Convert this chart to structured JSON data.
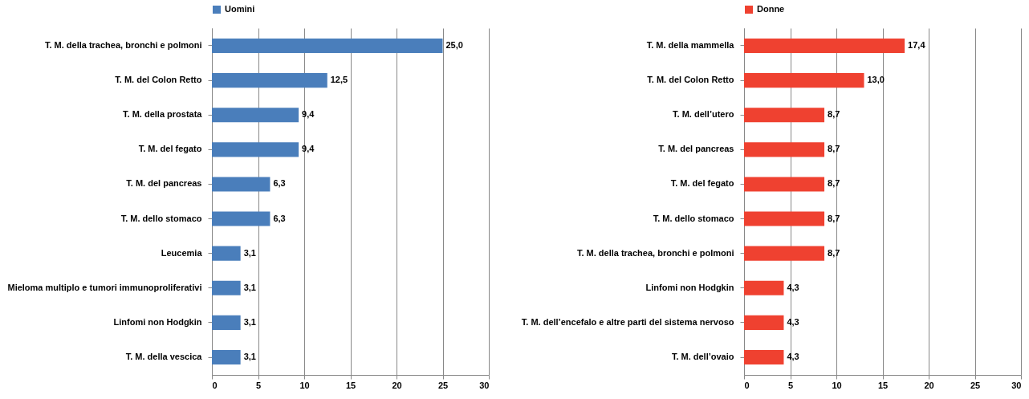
{
  "chart_data": [
    {
      "type": "bar",
      "orientation": "horizontal",
      "categories": [
        "T. M. della trachea, bronchi e polmoni",
        "T. M. del Colon Retto",
        "T. M. della prostata",
        "T. M. del fegato",
        "T. M. del pancreas",
        "T. M. dello stomaco",
        "Leucemia",
        "Mieloma multiplo e tumori immunoproliferativi",
        "Linfomi non Hodgkin",
        "T. M. della vescica"
      ],
      "series": [
        {
          "name": "Uomini",
          "color": "#4a7ebb",
          "values": [
            25.0,
            12.5,
            9.4,
            9.4,
            6.3,
            6.3,
            3.1,
            3.1,
            3.1,
            3.1
          ],
          "value_labels": [
            "25,0",
            "12,5",
            "9,4",
            "9,4",
            "6,3",
            "6,3",
            "3,1",
            "3,1",
            "3,1",
            "3,1"
          ]
        }
      ],
      "xlim": [
        0,
        30
      ],
      "xticks": [
        0,
        5,
        10,
        15,
        20,
        25,
        30
      ],
      "grid": "x",
      "legend": "top"
    },
    {
      "type": "bar",
      "orientation": "horizontal",
      "categories": [
        "T. M. della mammella",
        "T. M. del Colon Retto",
        "T. M. dell’utero",
        "T. M. del pancreas",
        "T. M. del fegato",
        "T. M. dello stomaco",
        "T. M. della trachea, bronchi e polmoni",
        "Linfomi non Hodgkin",
        "T. M. dell’encefalo e altre parti del sistema nervoso",
        "T. M. dell’ovaio"
      ],
      "series": [
        {
          "name": "Donne",
          "color": "#ef4130",
          "values": [
            17.4,
            13.0,
            8.7,
            8.7,
            8.7,
            8.7,
            8.7,
            4.3,
            4.3,
            4.3
          ],
          "value_labels": [
            "17,4",
            "13,0",
            "8,7",
            "8,7",
            "8,7",
            "8,7",
            "8,7",
            "4,3",
            "4,3",
            "4,3"
          ]
        }
      ],
      "xlim": [
        0,
        30
      ],
      "xticks": [
        0,
        5,
        10,
        15,
        20,
        25,
        30
      ],
      "grid": "x",
      "legend": "top"
    }
  ]
}
